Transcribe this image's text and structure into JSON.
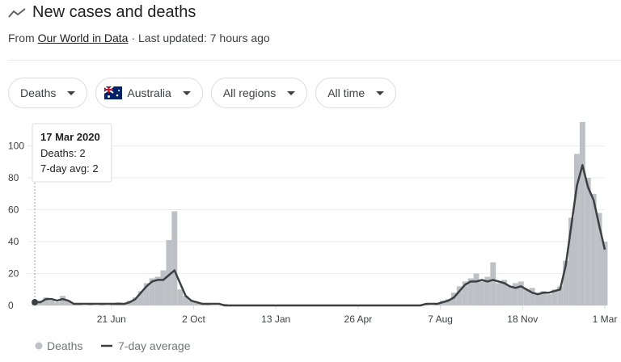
{
  "header": {
    "title": "New cases and deaths",
    "source_prefix": "From",
    "source": "Our World in Data",
    "updated": "· Last updated: 7 hours ago"
  },
  "filters": [
    "Deaths",
    "Australia",
    "All regions",
    "All time"
  ],
  "chart_data": {
    "type": "combo",
    "x": [
      0,
      7,
      14,
      21,
      28,
      35,
      42,
      49,
      56,
      63,
      70,
      77,
      84,
      91,
      98,
      105,
      112,
      119,
      126,
      133,
      140,
      147,
      154,
      161,
      168,
      175,
      182,
      189,
      196,
      203,
      210,
      217,
      224,
      231,
      238,
      245,
      252,
      259,
      266,
      273,
      280,
      287,
      294,
      301,
      308,
      315,
      322,
      329,
      336,
      343,
      350,
      357,
      364,
      371,
      378,
      385,
      392,
      399,
      406,
      413,
      420,
      427,
      434,
      441,
      448,
      455,
      462,
      469,
      476,
      483,
      490,
      497,
      504,
      511,
      518,
      525,
      532,
      539,
      546,
      553,
      560,
      567,
      574,
      581,
      588,
      595,
      602,
      609,
      616,
      623,
      630,
      637,
      644,
      651,
      658,
      665,
      672,
      679,
      686,
      693,
      700,
      707,
      714
    ],
    "series": [
      {
        "name": "Deaths",
        "type": "bar",
        "color": "#bdc1c6",
        "values": [
          2,
          3,
          5,
          3,
          2,
          6,
          3,
          1,
          1,
          0,
          1,
          0,
          1,
          0,
          1,
          2,
          1,
          3,
          5,
          9,
          14,
          17,
          18,
          22,
          41,
          59,
          10,
          6,
          3,
          2,
          1,
          1,
          0,
          0,
          1,
          0,
          0,
          0,
          0,
          0,
          0,
          0,
          0,
          0,
          0,
          0,
          0,
          0,
          0,
          0,
          0,
          0,
          0,
          0,
          0,
          0,
          0,
          0,
          0,
          0,
          0,
          0,
          0,
          0,
          0,
          0,
          0,
          0,
          0,
          0,
          1,
          0,
          1,
          3,
          4,
          8,
          12,
          15,
          17,
          20,
          15,
          18,
          27,
          14,
          16,
          12,
          14,
          15,
          10,
          11,
          8,
          9,
          7,
          10,
          12,
          28,
          55,
          95,
          115,
          80,
          70,
          58,
          40
        ]
      },
      {
        "name": "7-day average",
        "type": "line",
        "color": "#3c4043",
        "values": [
          2,
          2,
          4,
          4,
          3,
          4,
          3,
          1,
          1,
          1,
          1,
          1,
          1,
          1,
          1,
          1,
          1,
          2,
          4,
          8,
          12,
          15,
          16,
          16,
          19,
          22,
          14,
          6,
          3,
          2,
          1,
          1,
          1,
          1,
          0,
          0,
          0,
          0,
          0,
          0,
          0,
          0,
          0,
          0,
          0,
          0,
          0,
          0,
          0,
          0,
          0,
          0,
          0,
          0,
          0,
          0,
          0,
          0,
          0,
          0,
          0,
          0,
          0,
          0,
          0,
          0,
          0,
          0,
          0,
          0,
          1,
          1,
          1,
          2,
          3,
          5,
          9,
          13,
          15,
          15,
          16,
          15,
          16,
          15,
          14,
          12,
          11,
          12,
          10,
          8,
          7,
          8,
          8,
          9,
          10,
          25,
          50,
          75,
          88,
          74,
          66,
          50,
          35
        ]
      }
    ],
    "xlim": [
      0,
      714
    ],
    "xticks": [
      {
        "value": 96,
        "label": "21 Jun"
      },
      {
        "value": 199,
        "label": "2 Oct"
      },
      {
        "value": 302,
        "label": "13 Jan"
      },
      {
        "value": 405,
        "label": "26 Apr"
      },
      {
        "value": 508,
        "label": "7 Aug"
      },
      {
        "value": 611,
        "label": "18 Nov"
      },
      {
        "value": 714,
        "label": "1 Mar"
      }
    ],
    "ylim": [
      0,
      116
    ],
    "yticks": [
      0,
      20,
      40,
      60,
      80,
      100
    ],
    "grid": true,
    "tooltip": {
      "date": "17 Mar 2020",
      "lines": [
        "Deaths: 2",
        "7-day avg: 2"
      ]
    }
  }
}
